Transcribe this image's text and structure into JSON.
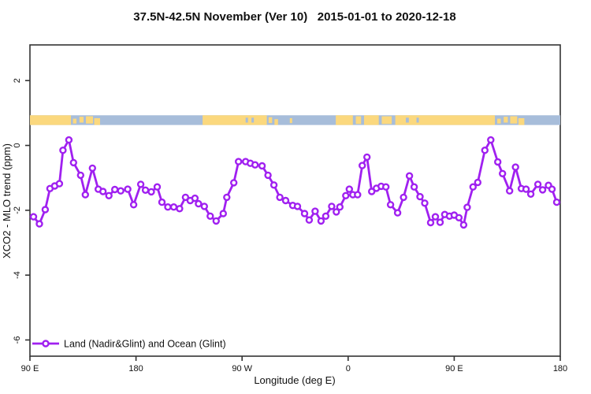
{
  "title": "37.5N-42.5N November (Ver 10)   2015-01-01 to 2020-12-18",
  "legend": {
    "label": "Land (Nadir&Glint) and Ocean (Glint)"
  },
  "colors": {
    "series": "#A020F0",
    "marker_fill": "#ffffff",
    "land": "#FBD87E",
    "ocean": "#A7BDDA",
    "frame": "#333333"
  },
  "chart_data": {
    "type": "line",
    "title": "37.5N-42.5N November (Ver 10)   2015-01-01 to 2020-12-18",
    "xlabel": "Longitude (deg E)",
    "ylabel": "XCO2 - MLO trend (ppm)",
    "xlim": [
      90,
      540
    ],
    "ylim": [
      -6.5,
      3.1
    ],
    "grid": false,
    "legend_position": "bottom-left",
    "x_ticks": [
      {
        "deg": 90,
        "label": "90 E"
      },
      {
        "deg": 180,
        "label": "180"
      },
      {
        "deg": 270,
        "label": "90 W"
      },
      {
        "deg": 360,
        "label": "0"
      },
      {
        "deg": 450,
        "label": "90 E"
      },
      {
        "deg": 540,
        "label": "180"
      }
    ],
    "y_ticks": [
      {
        "value": 2,
        "label": "2"
      },
      {
        "value": 0,
        "label": "0"
      },
      {
        "value": -2,
        "label": "-2"
      },
      {
        "value": -4,
        "label": "-4"
      },
      {
        "value": -6,
        "label": "-6"
      }
    ],
    "series": [
      {
        "name": "Land (Nadir&Glint) and Ocean (Glint)",
        "color": "#A020F0",
        "marker": "open-circle",
        "points": [
          [
            93,
            -2.2
          ],
          [
            98,
            -2.42
          ],
          [
            103,
            -1.98
          ],
          [
            107,
            -1.33
          ],
          [
            111,
            -1.25
          ],
          [
            115,
            -1.18
          ],
          [
            118,
            -0.15
          ],
          [
            123,
            0.17
          ],
          [
            127,
            -0.53
          ],
          [
            133,
            -0.92
          ],
          [
            137,
            -1.52
          ],
          [
            143,
            -0.7
          ],
          [
            148,
            -1.35
          ],
          [
            152,
            -1.42
          ],
          [
            157,
            -1.55
          ],
          [
            162,
            -1.36
          ],
          [
            167,
            -1.4
          ],
          [
            173,
            -1.35
          ],
          [
            178,
            -1.83
          ],
          [
            184,
            -1.2
          ],
          [
            188,
            -1.38
          ],
          [
            193,
            -1.43
          ],
          [
            198,
            -1.28
          ],
          [
            202,
            -1.75
          ],
          [
            207,
            -1.9
          ],
          [
            212,
            -1.9
          ],
          [
            217,
            -1.95
          ],
          [
            222,
            -1.6
          ],
          [
            226,
            -1.7
          ],
          [
            230,
            -1.63
          ],
          [
            233,
            -1.8
          ],
          [
            238,
            -1.88
          ],
          [
            243,
            -2.18
          ],
          [
            248,
            -2.33
          ],
          [
            254,
            -2.1
          ],
          [
            257,
            -1.6
          ],
          [
            263,
            -1.15
          ],
          [
            267,
            -0.5
          ],
          [
            273,
            -0.5
          ],
          [
            277,
            -0.55
          ],
          [
            281,
            -0.6
          ],
          [
            287,
            -0.63
          ],
          [
            292,
            -0.92
          ],
          [
            297,
            -1.22
          ],
          [
            302,
            -1.6
          ],
          [
            307,
            -1.7
          ],
          [
            313,
            -1.85
          ],
          [
            317,
            -1.88
          ],
          [
            323,
            -2.1
          ],
          [
            327,
            -2.3
          ],
          [
            332,
            -2.03
          ],
          [
            337,
            -2.33
          ],
          [
            341,
            -2.18
          ],
          [
            346,
            -1.88
          ],
          [
            350,
            -2.05
          ],
          [
            353,
            -1.9
          ],
          [
            358,
            -1.55
          ],
          [
            361,
            -1.35
          ],
          [
            364,
            -1.52
          ],
          [
            368,
            -1.52
          ],
          [
            372,
            -0.62
          ],
          [
            376,
            -0.36
          ],
          [
            380,
            -1.42
          ],
          [
            384,
            -1.32
          ],
          [
            388,
            -1.26
          ],
          [
            392,
            -1.28
          ],
          [
            396,
            -1.83
          ],
          [
            402,
            -2.08
          ],
          [
            407,
            -1.6
          ],
          [
            412,
            -0.94
          ],
          [
            416,
            -1.28
          ],
          [
            421,
            -1.58
          ],
          [
            425,
            -1.78
          ],
          [
            430,
            -2.38
          ],
          [
            434,
            -2.2
          ],
          [
            438,
            -2.37
          ],
          [
            442,
            -2.13
          ],
          [
            446,
            -2.18
          ],
          [
            450,
            -2.15
          ],
          [
            454,
            -2.23
          ],
          [
            458,
            -2.45
          ],
          [
            461,
            -1.91
          ],
          [
            466,
            -1.28
          ],
          [
            470,
            -1.14
          ],
          [
            476,
            -0.15
          ],
          [
            481,
            0.17
          ],
          [
            487,
            -0.51
          ],
          [
            491,
            -0.87
          ],
          [
            497,
            -1.4
          ],
          [
            502,
            -0.67
          ],
          [
            507,
            -1.33
          ],
          [
            511,
            -1.35
          ],
          [
            515,
            -1.5
          ],
          [
            521,
            -1.2
          ],
          [
            525,
            -1.37
          ],
          [
            530,
            -1.23
          ],
          [
            533,
            -1.35
          ],
          [
            537,
            -1.75
          ]
        ]
      }
    ],
    "map_band": {
      "description": "land-ocean strip for latitude band",
      "value_top": 0.93,
      "value_bottom": 0.63,
      "ocean_color": "#A7BDDA",
      "land_color": "#FBD87E",
      "land_segments": [
        [
          90,
          124.8,
          0,
          1
        ],
        [
          126.5,
          129.5,
          0.35,
          0.5
        ],
        [
          132,
          135.5,
          0.15,
          0.6
        ],
        [
          137.5,
          143.5,
          0.1,
          0.75
        ],
        [
          144.5,
          149.5,
          0.3,
          0.7
        ],
        [
          236.5,
          291,
          0,
          1
        ],
        [
          292.5,
          295.5,
          0.2,
          0.6
        ],
        [
          297.5,
          300.5,
          0.4,
          0.6
        ],
        [
          310.5,
          312.5,
          0.3,
          0.5
        ],
        [
          349.5,
          364,
          0,
          1
        ],
        [
          366.5,
          371,
          0.1,
          0.8
        ],
        [
          373.5,
          386,
          0,
          1
        ],
        [
          388.5,
          397,
          0.1,
          0.8
        ],
        [
          400,
          484.5,
          0,
          1
        ],
        [
          486.5,
          489.5,
          0.35,
          0.5
        ],
        [
          492,
          495.5,
          0.15,
          0.6
        ],
        [
          497.5,
          503.5,
          0.1,
          0.75
        ],
        [
          504.5,
          509.5,
          0.3,
          0.7
        ]
      ],
      "inland_water_segments": [
        [
          273,
          275
        ],
        [
          278,
          280
        ],
        [
          409,
          411.5
        ],
        [
          418,
          420
        ]
      ]
    }
  }
}
